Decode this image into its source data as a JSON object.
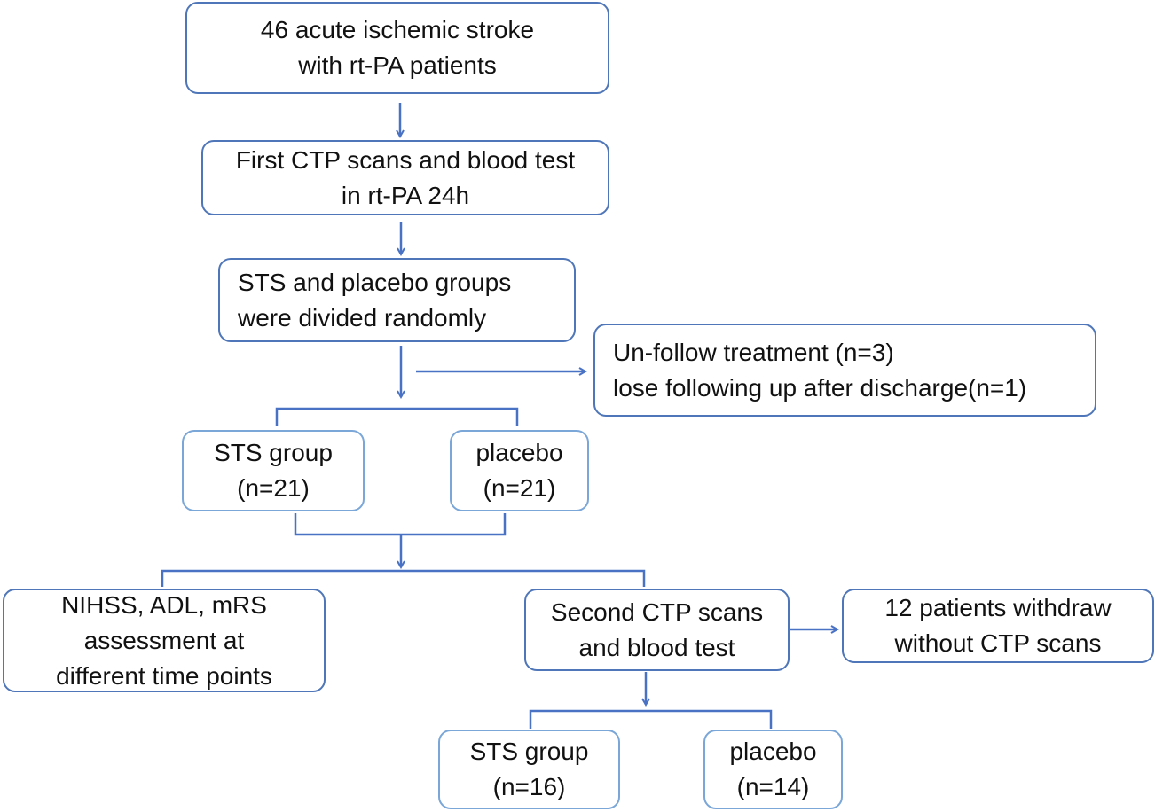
{
  "colors": {
    "border": "#4f76b8",
    "border_light": "#7aa6d8",
    "connector": "#4a72c4",
    "text": "#111111"
  },
  "boxes": {
    "enrolled": {
      "line1": "46 acute ischemic stroke",
      "line2": "with rt-PA  patients"
    },
    "first_ctp": {
      "line1": "First CTP scans and blood test",
      "line2": "in rt-PA  24h"
    },
    "randomized": {
      "line1": "STS and placebo groups",
      "line2": "were divided randomly"
    },
    "excluded": {
      "line1": "Un-follow treatment (n=3)",
      "line2": "lose following up after discharge(n=1)"
    },
    "sts_group_1": {
      "line1": "STS group",
      "line2": "(n=21)"
    },
    "placebo_1": {
      "line1": "placebo",
      "line2": "(n=21)"
    },
    "assessment": {
      "line1": "NIHSS, ADL, mRS",
      "line2": "assessment at",
      "line3": "different time points"
    },
    "second_ctp": {
      "line1": "Second CTP scans",
      "line2": "and blood test"
    },
    "withdraw": {
      "line1": "12 patients withdraw",
      "line2": "without CTP scans"
    },
    "sts_group_2": {
      "line1": "STS group",
      "line2": "(n=16)"
    },
    "placebo_2": {
      "line1": "placebo",
      "line2": "(n=14)"
    }
  }
}
